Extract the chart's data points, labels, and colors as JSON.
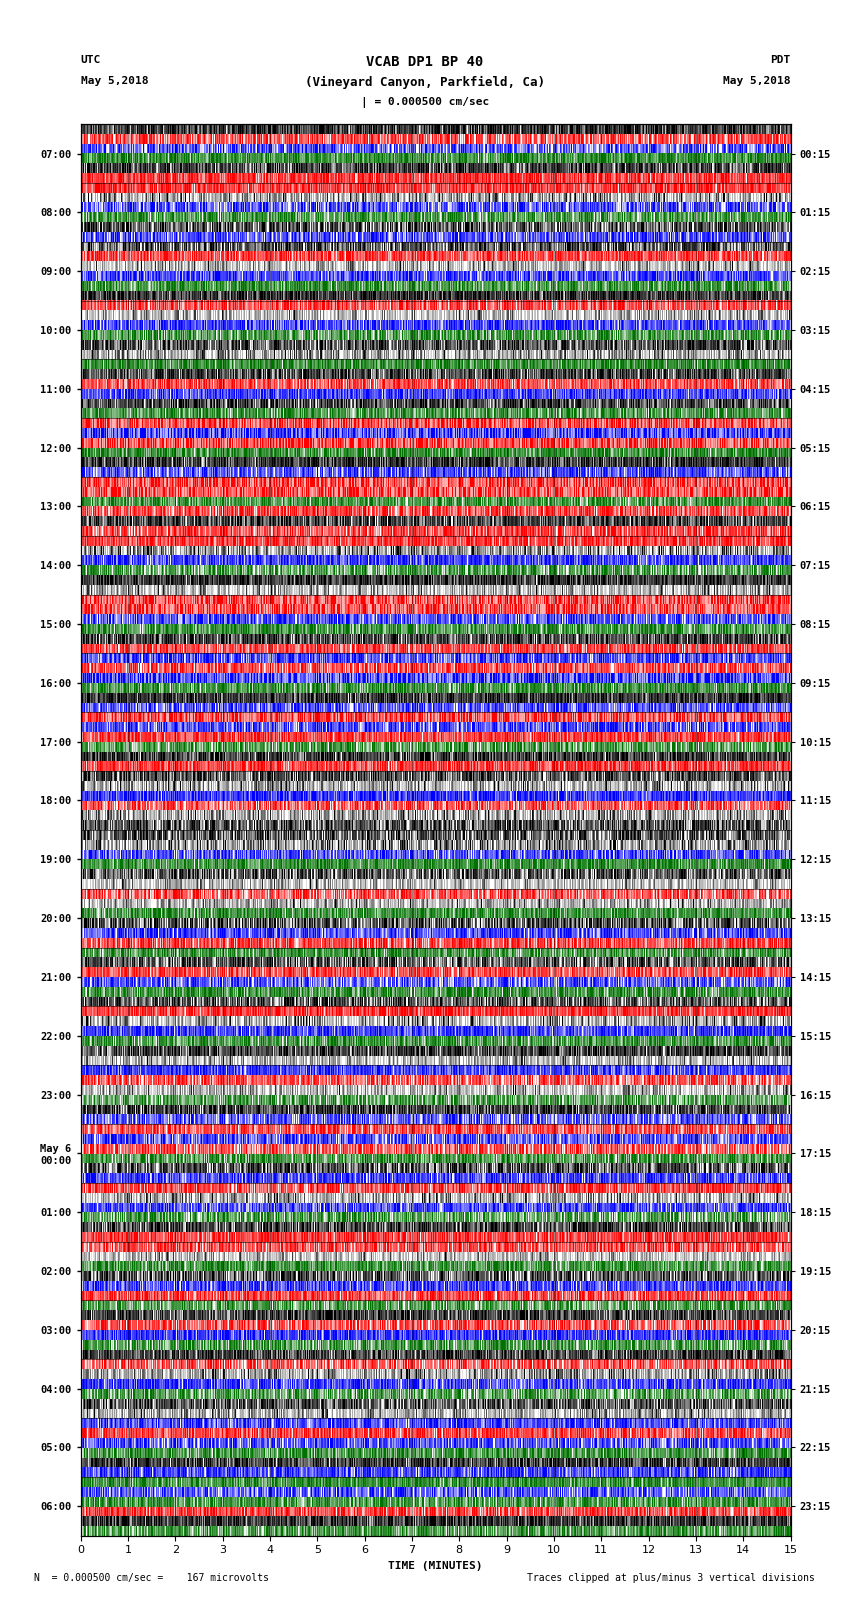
{
  "title_line1": "VCAB DP1 BP 40",
  "title_line2": "(Vineyard Canyon, Parkfield, Ca)",
  "scale_label": "| = 0.000500 cm/sec",
  "utc_label": "UTC",
  "pdt_label": "PDT",
  "date_left": "May 5,2018",
  "date_right": "May 5,2018",
  "bottom_label_left": "= 0.000500 cm/sec =    167 microvolts",
  "bottom_label_right": "Traces clipped at plus/minus 3 vertical divisions",
  "xlabel": "TIME (MINUTES)",
  "left_times": [
    "07:00",
    "08:00",
    "09:00",
    "10:00",
    "11:00",
    "12:00",
    "13:00",
    "14:00",
    "15:00",
    "16:00",
    "17:00",
    "18:00",
    "19:00",
    "20:00",
    "21:00",
    "22:00",
    "23:00",
    "May 6\n00:00",
    "01:00",
    "02:00",
    "03:00",
    "04:00",
    "05:00",
    "06:00"
  ],
  "right_times": [
    "00:15",
    "01:15",
    "02:15",
    "03:15",
    "04:15",
    "05:15",
    "06:15",
    "07:15",
    "08:15",
    "09:15",
    "10:15",
    "11:15",
    "12:15",
    "13:15",
    "14:15",
    "15:15",
    "16:15",
    "17:15",
    "18:15",
    "19:15",
    "20:15",
    "21:15",
    "22:15",
    "23:15"
  ],
  "n_rows": 24,
  "seed": 42,
  "row_patterns": [
    [
      "black",
      "red",
      "blue",
      "green",
      "black",
      "red"
    ],
    [
      "red",
      "white",
      "blue",
      "green",
      "black",
      "blue"
    ],
    [
      "black",
      "red",
      "white",
      "blue",
      "green",
      "black"
    ],
    [
      "red",
      "white",
      "blue",
      "green",
      "black",
      "white"
    ],
    [
      "green",
      "black",
      "red",
      "blue",
      "black",
      "green"
    ],
    [
      "red",
      "blue",
      "red",
      "green",
      "black",
      "blue"
    ],
    [
      "red",
      "red",
      "green",
      "red",
      "black",
      "red"
    ],
    [
      "red",
      "white",
      "blue",
      "green",
      "black",
      "white"
    ],
    [
      "red",
      "red",
      "blue",
      "green",
      "black",
      "red"
    ],
    [
      "blue",
      "red",
      "blue",
      "green",
      "black",
      "blue"
    ],
    [
      "red",
      "blue",
      "red",
      "green",
      "black",
      "red"
    ],
    [
      "black",
      "white",
      "blue",
      "red",
      "white",
      "black"
    ],
    [
      "black",
      "white",
      "blue",
      "green",
      "black",
      "white"
    ],
    [
      "red",
      "white",
      "green",
      "black",
      "blue",
      "red"
    ],
    [
      "green",
      "black",
      "red",
      "blue",
      "green",
      "black"
    ],
    [
      "red",
      "white",
      "blue",
      "green",
      "black",
      "white"
    ],
    [
      "blue",
      "red",
      "white",
      "green",
      "black",
      "blue"
    ],
    [
      "red",
      "blue",
      "red",
      "green",
      "black",
      "blue"
    ],
    [
      "red",
      "white",
      "blue",
      "green",
      "black",
      "red"
    ],
    [
      "red",
      "white",
      "green",
      "black",
      "blue",
      "red"
    ],
    [
      "green",
      "black",
      "red",
      "blue",
      "green",
      "black"
    ],
    [
      "red",
      "white",
      "blue",
      "green",
      "black",
      "white"
    ],
    [
      "blue",
      "red",
      "blue",
      "green",
      "black",
      "blue"
    ],
    [
      "green",
      "blue",
      "green",
      "red",
      "black",
      "green"
    ]
  ]
}
